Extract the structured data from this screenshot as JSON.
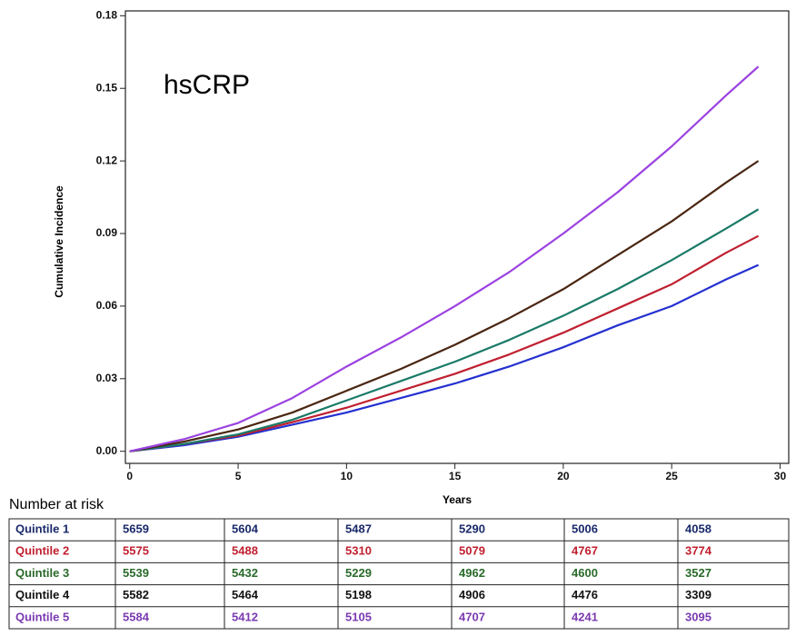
{
  "chart_data": {
    "type": "line",
    "annotation": "hsCRP",
    "xlabel": "Years",
    "ylabel": "Cumulative Incidence",
    "x": [
      0,
      2.5,
      5,
      7.5,
      10,
      12.5,
      15,
      17.5,
      20,
      22.5,
      25,
      27.5,
      29
    ],
    "xlim": [
      -0.2,
      30.4
    ],
    "xticks": [
      0,
      5,
      10,
      15,
      20,
      25,
      30
    ],
    "ylim": [
      -0.005,
      0.182
    ],
    "yticks": [
      {
        "value": 0,
        "label": "0.00"
      },
      {
        "value": 0.03,
        "label": "0.03"
      },
      {
        "value": 0.06,
        "label": "0.06"
      },
      {
        "value": 0.09,
        "label": "0.09"
      },
      {
        "value": 0.12,
        "label": "0.12"
      },
      {
        "value": 0.15,
        "label": "0.15"
      },
      {
        "value": 0.18,
        "label": "0.18"
      }
    ],
    "risk_title": "Number at risk",
    "series": [
      {
        "name": "Quintile 1",
        "color": "#2430d0",
        "text_color": "#1a2a6a",
        "values": [
          0,
          0.0025,
          0.006,
          0.011,
          0.016,
          0.022,
          0.028,
          0.035,
          0.043,
          0.052,
          0.06,
          0.071,
          0.077
        ],
        "at_risk": [
          5659,
          5604,
          5487,
          5290,
          5006,
          4058
        ]
      },
      {
        "name": "Quintile 2",
        "color": "#c01f2f",
        "text_color": "#c01f2f",
        "values": [
          0,
          0.003,
          0.0065,
          0.012,
          0.018,
          0.025,
          0.032,
          0.04,
          0.049,
          0.059,
          0.069,
          0.082,
          0.089
        ],
        "at_risk": [
          5575,
          5488,
          5310,
          5079,
          4767,
          3774
        ]
      },
      {
        "name": "Quintile 3",
        "color": "#1a7a68",
        "text_color": "#2a6a2a",
        "values": [
          0,
          0.003,
          0.007,
          0.013,
          0.021,
          0.029,
          0.037,
          0.046,
          0.056,
          0.067,
          0.079,
          0.092,
          0.1
        ],
        "at_risk": [
          5539,
          5432,
          5229,
          4962,
          4600,
          3527
        ]
      },
      {
        "name": "Quintile 4",
        "color": "#4a2612",
        "text_color": "#111111",
        "values": [
          0,
          0.004,
          0.009,
          0.016,
          0.025,
          0.034,
          0.044,
          0.055,
          0.067,
          0.081,
          0.095,
          0.111,
          0.12
        ],
        "at_risk": [
          5582,
          5464,
          5198,
          4906,
          4476,
          3309
        ]
      },
      {
        "name": "Quintile 5",
        "color": "#9b42e0",
        "text_color": "#7a3ab0",
        "values": [
          0,
          0.005,
          0.0117,
          0.022,
          0.035,
          0.047,
          0.06,
          0.074,
          0.09,
          0.107,
          0.126,
          0.147,
          0.159
        ],
        "at_risk": [
          5584,
          5412,
          5105,
          4707,
          4241,
          3095
        ]
      }
    ]
  }
}
